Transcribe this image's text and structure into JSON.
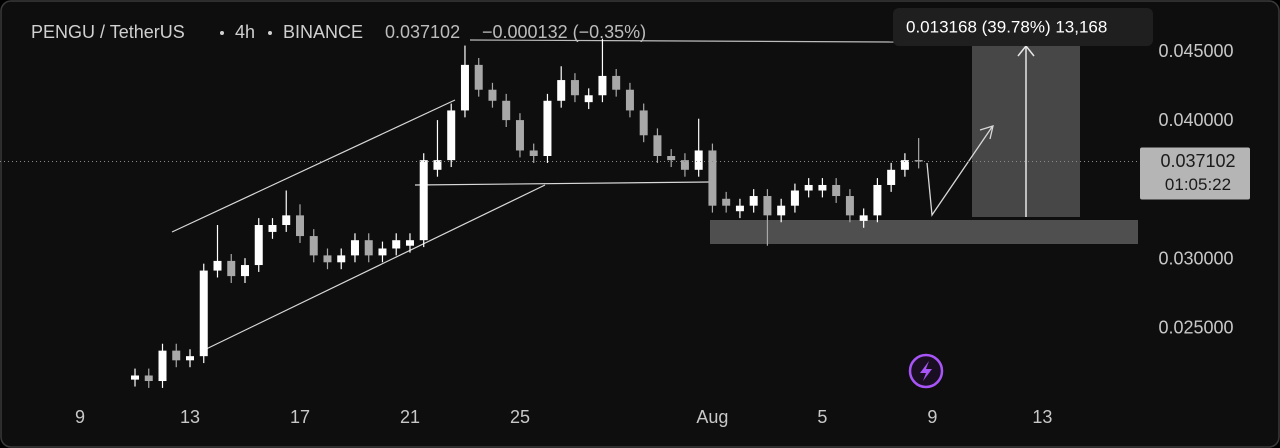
{
  "chart_data": {
    "type": "candlestick",
    "title": "PENGU / TetherUS",
    "interval": "4h",
    "exchange": "BINANCE",
    "last_price": 0.037102,
    "change": "−0.000132 (−0.35%)",
    "countdown": "01:05:22",
    "measure_label": "0.013168 (39.78%) 13,168",
    "up_color": "#ffffff",
    "down_color": "#a8a8a8",
    "grid": false,
    "xlim": [
      6.09,
      47.55
    ],
    "ylim": [
      0.0191,
      0.0488
    ],
    "xticks": [
      9,
      13,
      17,
      21,
      25,
      {
        "value": 32,
        "label": "Aug"
      },
      {
        "value": 36,
        "label": "5"
      },
      {
        "value": 40,
        "label": "9"
      },
      {
        "value": 44,
        "label": "13"
      }
    ],
    "yticks": [
      {
        "value": 0.045,
        "label": "0.045000"
      },
      {
        "value": 0.04,
        "label": "0.040000"
      },
      {
        "value": 0.03,
        "label": "0.030000"
      },
      {
        "value": 0.025,
        "label": "0.025000"
      }
    ],
    "x": [
      11,
      11.5,
      12,
      12.5,
      13,
      13.5,
      14,
      14.5,
      15,
      15.5,
      16,
      16.5,
      17,
      17.5,
      18,
      18.5,
      19,
      19.5,
      20,
      20.5,
      21,
      21.5,
      22,
      22.5,
      23,
      23.5,
      24,
      24.5,
      25,
      25.5,
      26,
      26.5,
      27,
      27.5,
      28,
      28.5,
      29,
      29.5,
      30,
      30.5,
      31,
      31.5,
      32,
      32.5,
      33,
      33.5,
      34,
      34.5,
      35,
      35.5,
      36,
      36.5,
      37,
      37.5,
      38,
      38.5,
      39,
      39.5
    ],
    "open": [
      0.0213,
      0.0216,
      0.0212,
      0.0234,
      0.0227,
      0.023,
      0.0292,
      0.0299,
      0.0288,
      0.0296,
      0.032,
      0.0325,
      0.0332,
      0.0317,
      0.0303,
      0.0298,
      0.0303,
      0.0314,
      0.0303,
      0.0308,
      0.031,
      0.0314,
      0.0365,
      0.0372,
      0.0408,
      0.0441,
      0.0423,
      0.0415,
      0.0401,
      0.0379,
      0.0375,
      0.0415,
      0.043,
      0.0414,
      0.0419,
      0.0433,
      0.0423,
      0.0408,
      0.039,
      0.0375,
      0.0372,
      0.0365,
      0.0379,
      0.0344,
      0.0335,
      0.0339,
      0.0346,
      0.0332,
      0.0339,
      0.035,
      0.035,
      0.0354,
      0.0346,
      0.0328,
      0.0332,
      0.0354,
      0.0365,
      0.0372
    ],
    "high": [
      0.0221,
      0.0221,
      0.0239,
      0.0239,
      0.0235,
      0.0297,
      0.0325,
      0.0304,
      0.0301,
      0.033,
      0.033,
      0.035,
      0.034,
      0.0322,
      0.0308,
      0.0308,
      0.0319,
      0.0319,
      0.0313,
      0.0319,
      0.0319,
      0.0377,
      0.0401,
      0.0413,
      0.0455,
      0.0446,
      0.0428,
      0.042,
      0.0406,
      0.0384,
      0.042,
      0.044,
      0.0435,
      0.0424,
      0.046,
      0.0438,
      0.0428,
      0.0413,
      0.0395,
      0.038,
      0.0377,
      0.0402,
      0.0384,
      0.0349,
      0.0344,
      0.0351,
      0.0351,
      0.0344,
      0.0355,
      0.0359,
      0.0359,
      0.0359,
      0.0351,
      0.0337,
      0.0359,
      0.037,
      0.0377,
      0.0388
    ],
    "low": [
      0.0208,
      0.0207,
      0.0207,
      0.0222,
      0.0222,
      0.0225,
      0.0287,
      0.0283,
      0.0283,
      0.0291,
      0.0315,
      0.032,
      0.0312,
      0.0298,
      0.0293,
      0.0293,
      0.0298,
      0.0298,
      0.0298,
      0.0303,
      0.0305,
      0.0309,
      0.036,
      0.0367,
      0.0403,
      0.0418,
      0.041,
      0.0396,
      0.0374,
      0.037,
      0.037,
      0.041,
      0.0414,
      0.0409,
      0.0414,
      0.0418,
      0.0403,
      0.0385,
      0.037,
      0.0367,
      0.036,
      0.036,
      0.0334,
      0.0334,
      0.033,
      0.0334,
      0.031,
      0.0327,
      0.0334,
      0.0345,
      0.0345,
      0.0341,
      0.0327,
      0.0323,
      0.0327,
      0.0349,
      0.036,
      0.0366
    ],
    "close": [
      0.0216,
      0.0212,
      0.0234,
      0.0227,
      0.023,
      0.0292,
      0.0299,
      0.0288,
      0.0296,
      0.0325,
      0.0325,
      0.0332,
      0.0317,
      0.0303,
      0.0298,
      0.0303,
      0.0314,
      0.0303,
      0.0308,
      0.0314,
      0.0314,
      0.0372,
      0.0372,
      0.0408,
      0.0441,
      0.0423,
      0.0415,
      0.0401,
      0.0379,
      0.0375,
      0.0415,
      0.043,
      0.0419,
      0.0419,
      0.0433,
      0.0423,
      0.0408,
      0.039,
      0.0375,
      0.0372,
      0.0365,
      0.0379,
      0.0339,
      0.0339,
      0.0339,
      0.0346,
      0.0332,
      0.0339,
      0.035,
      0.0354,
      0.0354,
      0.0346,
      0.0332,
      0.0332,
      0.0354,
      0.0365,
      0.0372,
      0.037102
    ]
  }
}
